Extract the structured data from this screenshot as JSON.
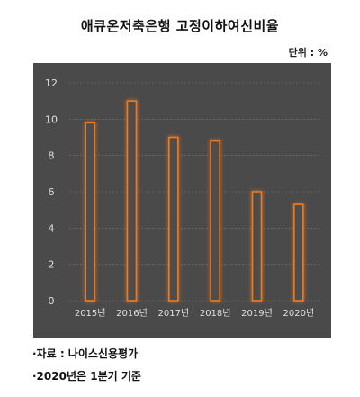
{
  "title": "애큐온저축은행 고정이하여신비율",
  "unit_label": "단위 : %",
  "notes": [
    "·자료 : 나이스신용평가",
    "·2020년은 1분기 기준"
  ],
  "colors": {
    "panel_bg": "#4a4a4a",
    "bar_fill": "#4e4e4e",
    "bar_stroke": "#f07a1a",
    "bar_glow": "#ff9a40",
    "axis_text": "#e0e0e0",
    "grid": "#777777"
  },
  "chart_data": {
    "type": "bar",
    "categories": [
      "2015년",
      "2016년",
      "2017년",
      "2018년",
      "2019년",
      "2020년"
    ],
    "values": [
      9.8,
      11.0,
      9.0,
      8.8,
      6.0,
      5.3
    ],
    "ylim": [
      0,
      12
    ],
    "yticks": [
      0,
      2,
      4,
      6,
      8,
      10,
      12
    ],
    "grid": true
  }
}
